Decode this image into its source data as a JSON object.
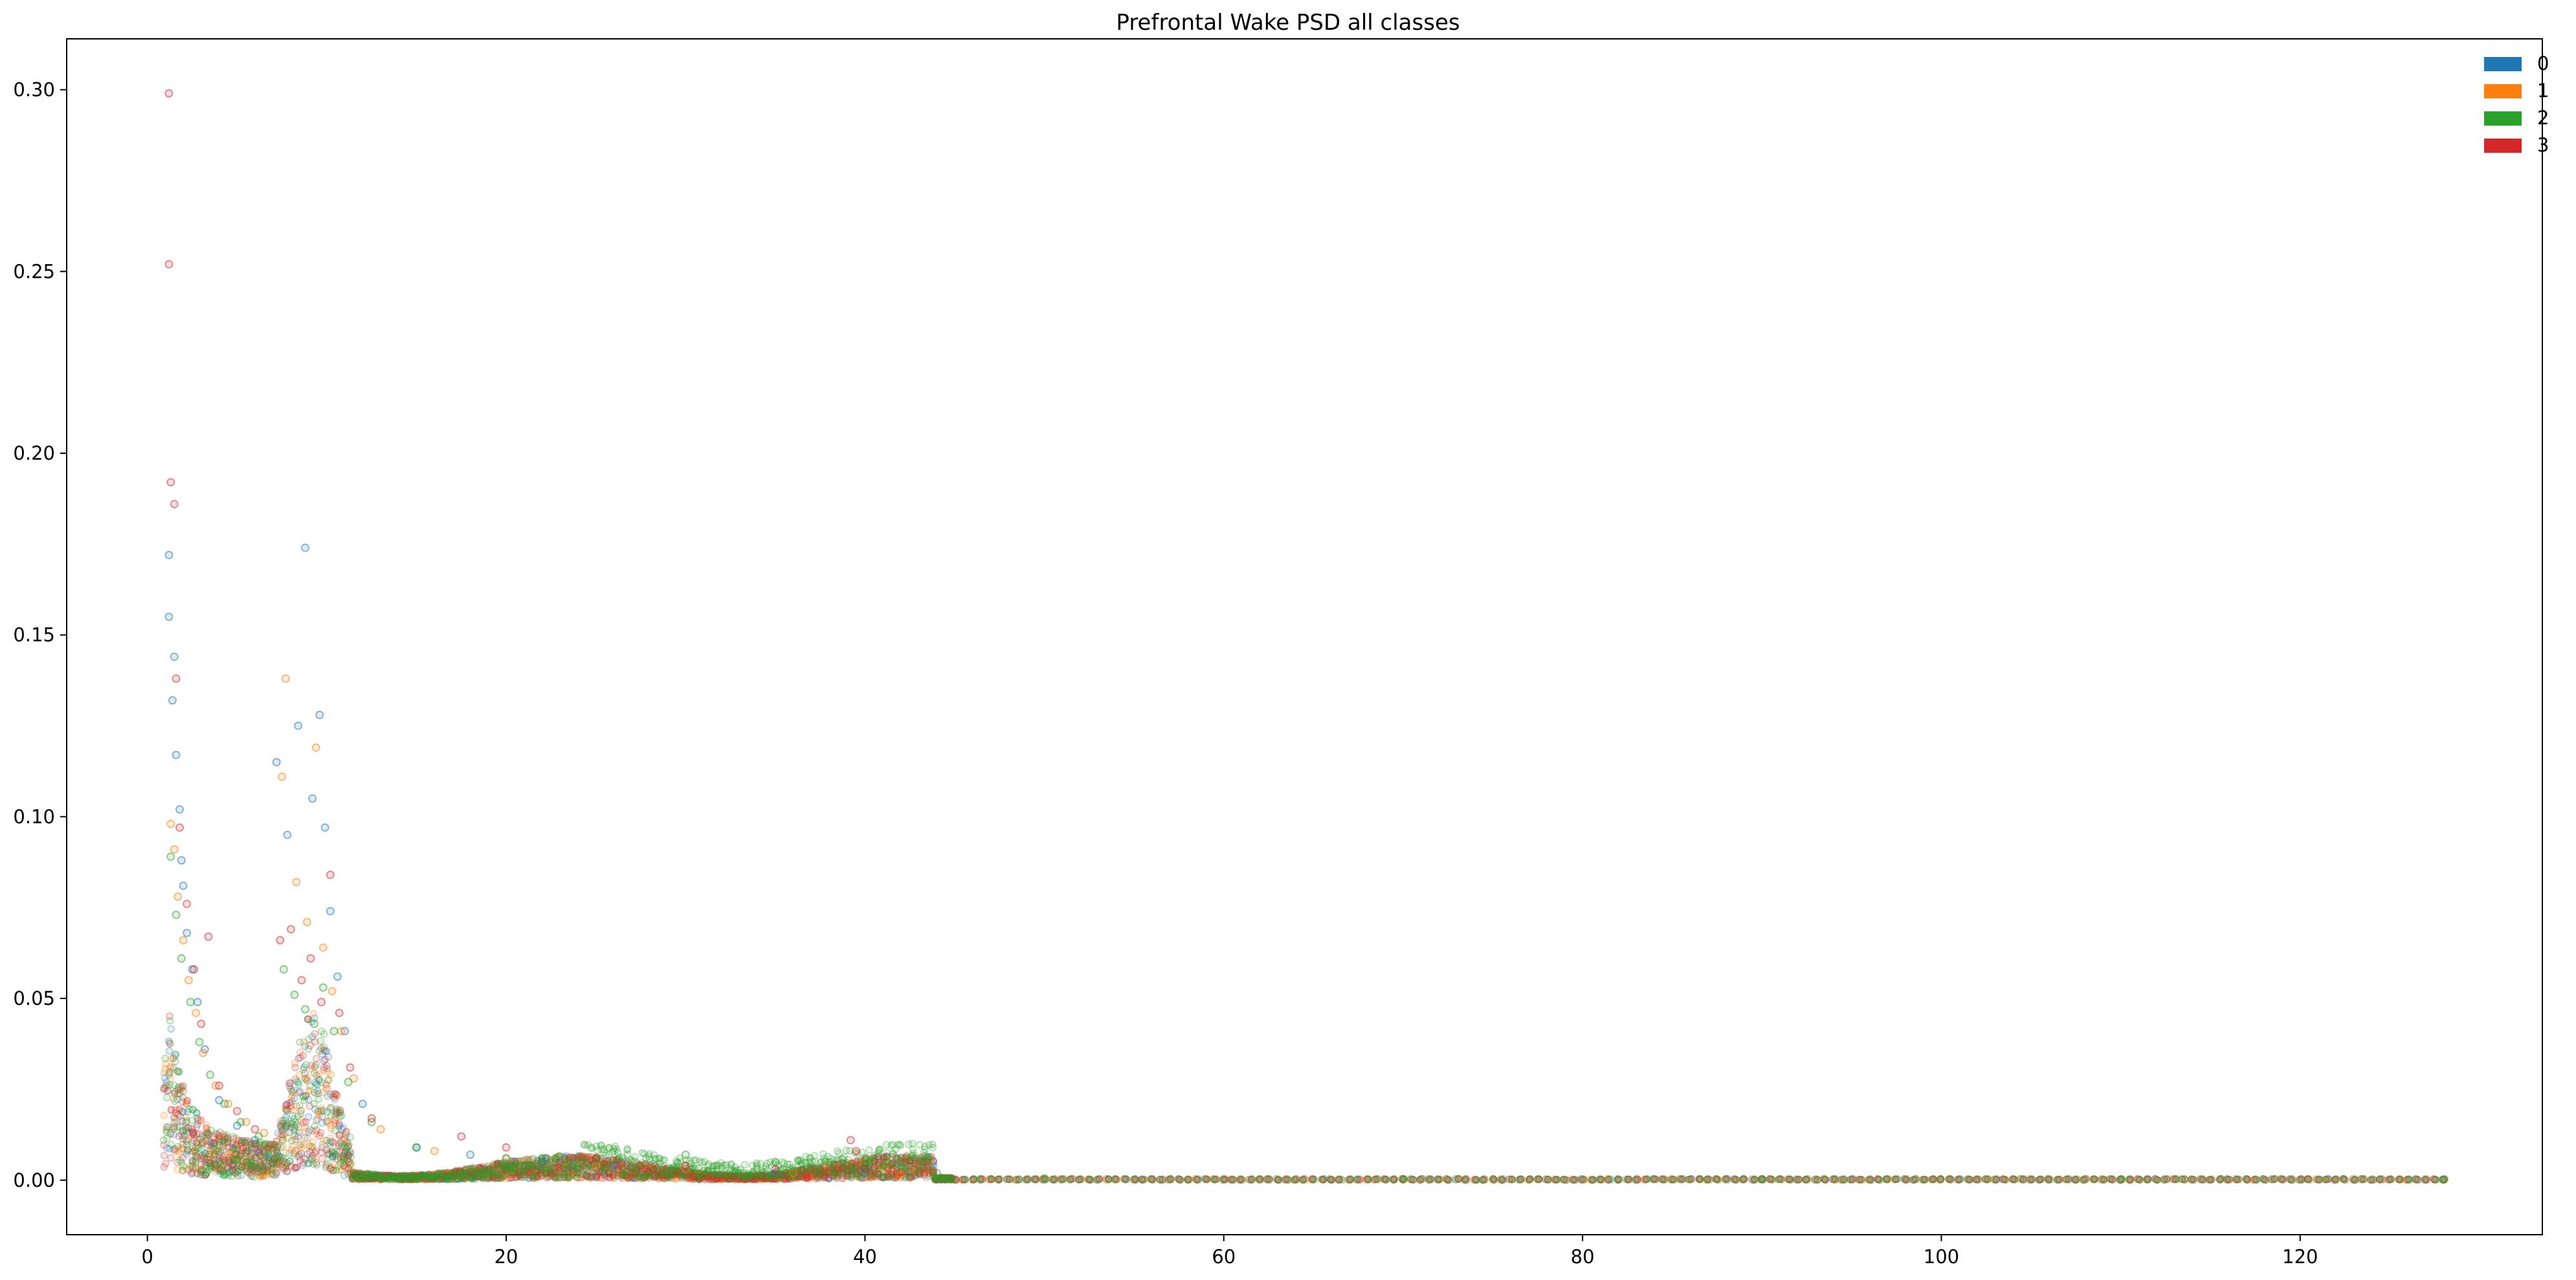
{
  "chart_data": {
    "type": "scatter",
    "title": "Prefrontal Wake PSD all classes",
    "xlabel": "",
    "ylabel": "",
    "xlim": [
      -4.5,
      133.5
    ],
    "ylim": [
      -0.015,
      0.314
    ],
    "x_ticks": [
      0,
      20,
      40,
      60,
      80,
      100,
      120
    ],
    "x_tick_labels": [
      "0",
      "20",
      "40",
      "60",
      "80",
      "100",
      "120"
    ],
    "y_ticks": [
      0.0,
      0.05,
      0.1,
      0.15,
      0.2,
      0.25,
      0.3
    ],
    "y_tick_labels": [
      "0.00",
      "0.05",
      "0.10",
      "0.15",
      "0.20",
      "0.25",
      "0.30"
    ],
    "grid": false,
    "legend_position": "top-right",
    "marker": "hollow circle, semi-transparent",
    "series": [
      {
        "name": "0",
        "color": "#1f77b4",
        "points": [
          [
            1.2,
            0.172
          ],
          [
            1.2,
            0.155
          ],
          [
            1.4,
            0.132
          ],
          [
            1.5,
            0.144
          ],
          [
            1.6,
            0.117
          ],
          [
            1.8,
            0.102
          ],
          [
            1.9,
            0.088
          ],
          [
            2.0,
            0.081
          ],
          [
            2.2,
            0.068
          ],
          [
            2.5,
            0.058
          ],
          [
            2.8,
            0.049
          ],
          [
            3.2,
            0.036
          ],
          [
            4.0,
            0.022
          ],
          [
            5.0,
            0.015
          ],
          [
            6.0,
            0.011
          ],
          [
            7.2,
            0.115
          ],
          [
            7.8,
            0.095
          ],
          [
            8.4,
            0.125
          ],
          [
            8.8,
            0.174
          ],
          [
            9.2,
            0.105
          ],
          [
            9.6,
            0.128
          ],
          [
            9.9,
            0.097
          ],
          [
            10.2,
            0.074
          ],
          [
            10.6,
            0.056
          ],
          [
            11.0,
            0.041
          ],
          [
            12.0,
            0.021
          ],
          [
            15.0,
            0.009
          ],
          [
            18.0,
            0.007
          ],
          [
            22.0,
            0.005
          ],
          [
            26.0,
            0.004
          ],
          [
            30.0,
            0.003
          ],
          [
            35.0,
            0.002
          ],
          [
            40.0,
            0.002
          ]
        ]
      },
      {
        "name": "1",
        "color": "#ff7f0e",
        "points": [
          [
            1.3,
            0.098
          ],
          [
            1.5,
            0.091
          ],
          [
            1.7,
            0.078
          ],
          [
            2.0,
            0.066
          ],
          [
            2.3,
            0.055
          ],
          [
            2.7,
            0.046
          ],
          [
            3.1,
            0.035
          ],
          [
            3.8,
            0.026
          ],
          [
            4.5,
            0.021
          ],
          [
            5.5,
            0.016
          ],
          [
            6.5,
            0.013
          ],
          [
            7.5,
            0.111
          ],
          [
            7.7,
            0.138
          ],
          [
            8.3,
            0.082
          ],
          [
            8.9,
            0.071
          ],
          [
            9.4,
            0.119
          ],
          [
            9.8,
            0.064
          ],
          [
            10.3,
            0.052
          ],
          [
            10.8,
            0.041
          ],
          [
            11.5,
            0.028
          ],
          [
            13.0,
            0.014
          ],
          [
            16.0,
            0.008
          ],
          [
            20.0,
            0.006
          ],
          [
            25.0,
            0.004
          ],
          [
            30.0,
            0.003
          ],
          [
            36.0,
            0.002
          ],
          [
            42.0,
            0.0015
          ]
        ]
      },
      {
        "name": "2",
        "color": "#2ca02c",
        "points": [
          [
            1.3,
            0.089
          ],
          [
            1.6,
            0.073
          ],
          [
            1.9,
            0.061
          ],
          [
            2.4,
            0.049
          ],
          [
            2.9,
            0.038
          ],
          [
            3.5,
            0.029
          ],
          [
            4.3,
            0.021
          ],
          [
            5.2,
            0.016
          ],
          [
            6.2,
            0.012
          ],
          [
            7.6,
            0.058
          ],
          [
            8.2,
            0.051
          ],
          [
            8.8,
            0.047
          ],
          [
            9.3,
            0.043
          ],
          [
            9.8,
            0.053
          ],
          [
            10.4,
            0.041
          ],
          [
            11.2,
            0.027
          ],
          [
            12.5,
            0.016
          ],
          [
            15.0,
            0.009
          ],
          [
            20.0,
            0.006
          ],
          [
            25.0,
            0.006
          ],
          [
            30.0,
            0.007
          ],
          [
            35.0,
            0.005
          ],
          [
            40.0,
            0.004
          ],
          [
            44.0,
            0.002
          ],
          [
            50.0,
            0.0005
          ],
          [
            70.0,
            0.0003
          ],
          [
            90.0,
            0.0003
          ],
          [
            110.0,
            0.0002
          ],
          [
            128.0,
            0.0002
          ]
        ]
      },
      {
        "name": "3",
        "color": "#d62728",
        "points": [
          [
            1.2,
            0.299
          ],
          [
            1.2,
            0.252
          ],
          [
            1.3,
            0.192
          ],
          [
            1.5,
            0.186
          ],
          [
            1.6,
            0.138
          ],
          [
            1.8,
            0.097
          ],
          [
            2.2,
            0.076
          ],
          [
            2.6,
            0.058
          ],
          [
            3.0,
            0.043
          ],
          [
            3.4,
            0.067
          ],
          [
            4.0,
            0.026
          ],
          [
            5.0,
            0.019
          ],
          [
            6.0,
            0.014
          ],
          [
            7.4,
            0.066
          ],
          [
            8.0,
            0.069
          ],
          [
            8.6,
            0.055
          ],
          [
            9.1,
            0.061
          ],
          [
            9.7,
            0.049
          ],
          [
            10.2,
            0.084
          ],
          [
            10.7,
            0.046
          ],
          [
            11.3,
            0.031
          ],
          [
            12.5,
            0.017
          ],
          [
            17.5,
            0.012
          ],
          [
            20.0,
            0.009
          ],
          [
            25.0,
            0.006
          ],
          [
            30.0,
            0.004
          ],
          [
            35.0,
            0.003
          ],
          [
            39.2,
            0.011
          ],
          [
            39.5,
            0.008
          ],
          [
            40.0,
            0.003
          ]
        ]
      }
    ]
  }
}
